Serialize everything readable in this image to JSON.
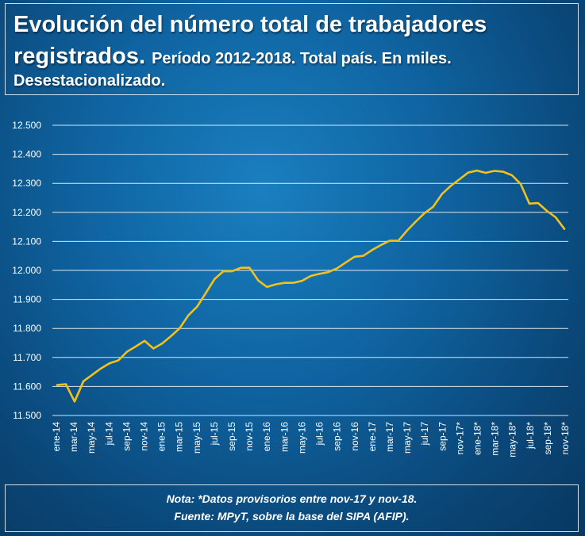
{
  "header": {
    "title_main": "Evolución del número total de trabajadores registrados.",
    "title_sub": "Período 2012-2018. Total país. En miles.",
    "title_sub2": "Desestacionalizado."
  },
  "notes": {
    "note": "Nota: *Datos provisorios entre nov-17 y nov-18.",
    "source": "Fuente: MPyT, sobre la base del SIPA (AFIP)."
  },
  "colors": {
    "line": "#f2c21a",
    "grid": "#ffffff",
    "text": "#ffffff"
  },
  "chart_data": {
    "type": "line",
    "title": "",
    "xlabel": "",
    "ylabel": "",
    "ylim": [
      11500,
      12500
    ],
    "ytick_labels": [
      "11.500",
      "11.600",
      "11.700",
      "11.800",
      "11.900",
      "12.000",
      "12.100",
      "12.200",
      "12.300",
      "12.400",
      "12.500"
    ],
    "grid": "horizontal",
    "x_tick_labels": [
      "ene-14",
      "mar-14",
      "may-14",
      "jul-14",
      "sep-14",
      "nov-14",
      "ene-15",
      "mar-15",
      "may-15",
      "jul-15",
      "sep-15",
      "nov-15",
      "ene-16",
      "mar-16",
      "may-16",
      "jul-16",
      "sep-16",
      "nov-16",
      "ene-17",
      "mar-17",
      "may-17",
      "jul-17",
      "sep-17",
      "nov-17*",
      "ene-18*",
      "mar-18*",
      "may-18*",
      "jul-18*",
      "sep-18*",
      "nov-18*"
    ],
    "series": [
      {
        "values": [
          11605,
          11608,
          11548,
          11618,
          11640,
          11662,
          11680,
          11690,
          11720,
          11738,
          11757,
          11731,
          11748,
          11773,
          11800,
          11845,
          11875,
          11922,
          11970,
          11997,
          11997,
          12009,
          12009,
          11965,
          11943,
          11952,
          11957,
          11957,
          11964,
          11981,
          11988,
          11994,
          12007,
          12027,
          12047,
          12050,
          12070,
          12087,
          12102,
          12102,
          12137,
          12168,
          12197,
          12219,
          12263,
          12291,
          12314,
          12337,
          12344,
          12336,
          12343,
          12340,
          12328,
          12298,
          12230,
          12232,
          12205,
          12183,
          12143
        ]
      }
    ]
  }
}
